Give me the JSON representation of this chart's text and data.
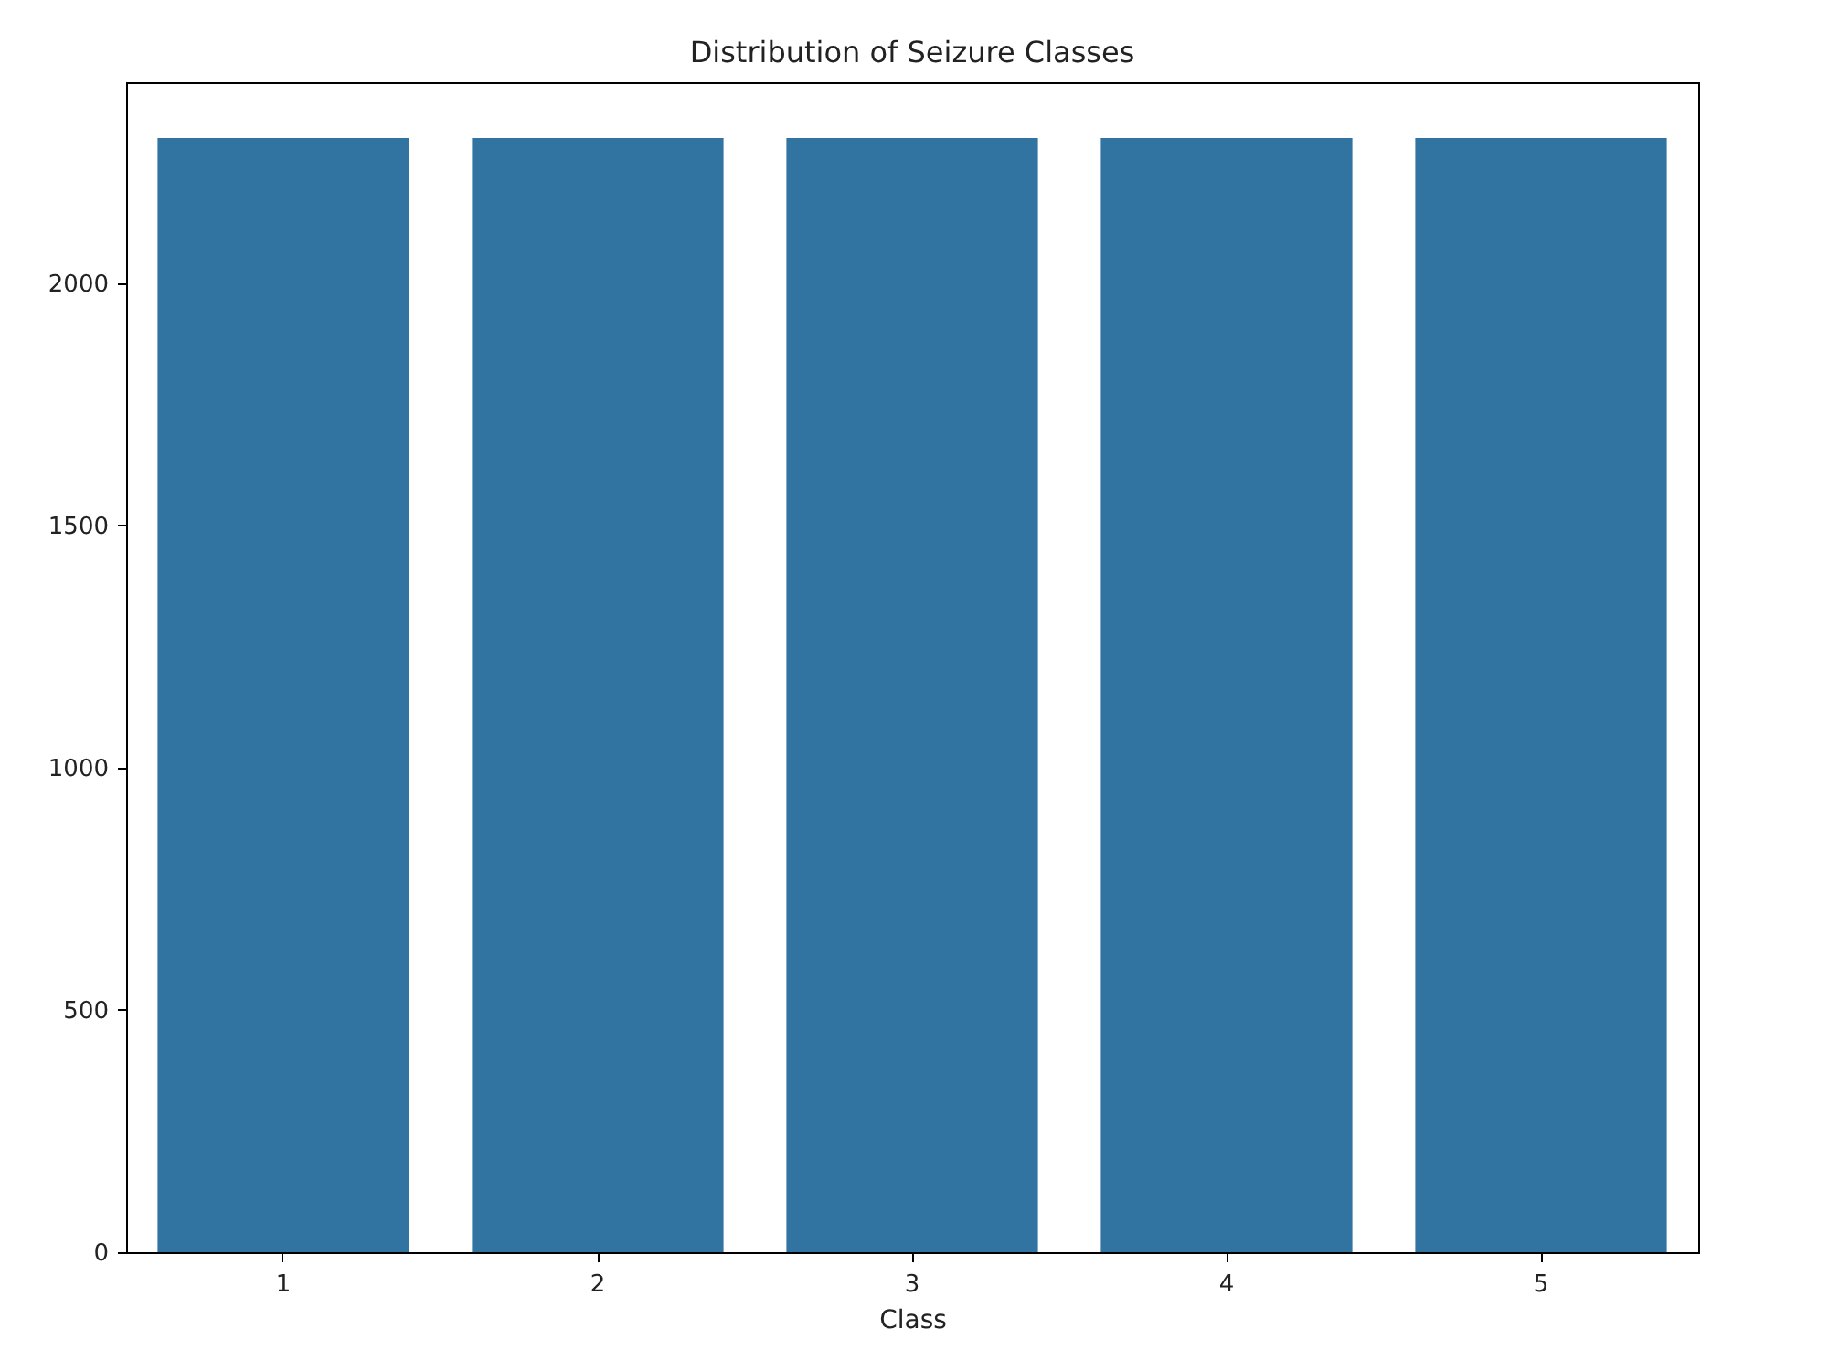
{
  "chart_data": {
    "type": "bar",
    "title": "Distribution of Seizure Classes",
    "xlabel": "Class",
    "categories": [
      "1",
      "2",
      "3",
      "4",
      "5"
    ],
    "values": [
      2300,
      2300,
      2300,
      2300,
      2300
    ],
    "color": "#3274a1",
    "ylim": [
      0,
      2415
    ],
    "yticks": [
      0,
      500,
      1000,
      1500,
      2000
    ],
    "grid": false
  }
}
